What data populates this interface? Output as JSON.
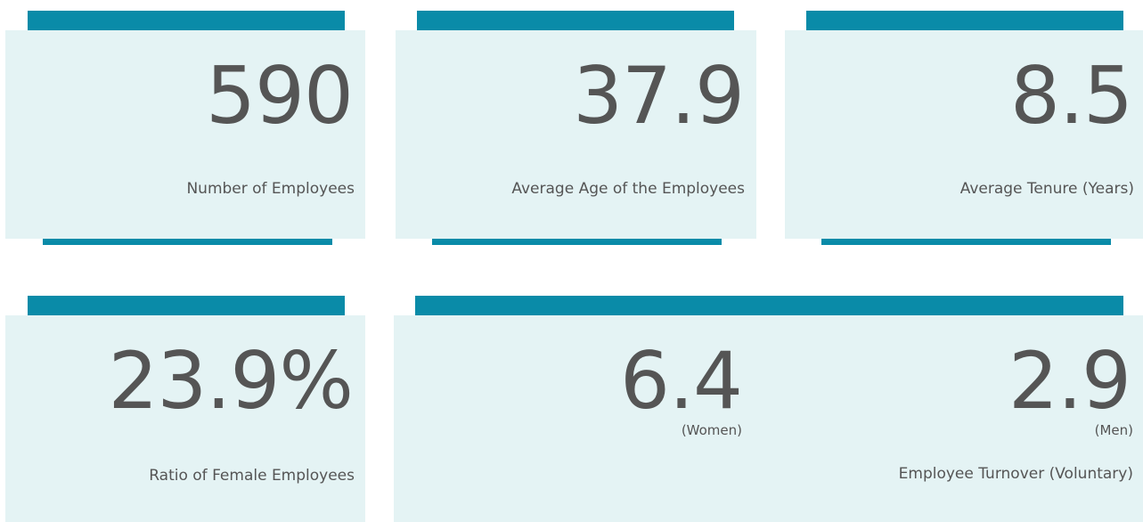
{
  "cards": [
    {
      "value": "590",
      "label": "Number of Employees"
    },
    {
      "value": "37.9",
      "label": "Average Age of the Employees"
    },
    {
      "value": "8.5",
      "label": "Average Tenure (Years)"
    },
    {
      "value": "23.9%",
      "label": "Ratio of Female Employees"
    }
  ],
  "turnover": {
    "items": [
      {
        "value": "6.4",
        "label": "(Women)"
      },
      {
        "value": "2.9",
        "label": "(Men)"
      }
    ],
    "label": "Employee Turnover (Voluntary)"
  }
}
